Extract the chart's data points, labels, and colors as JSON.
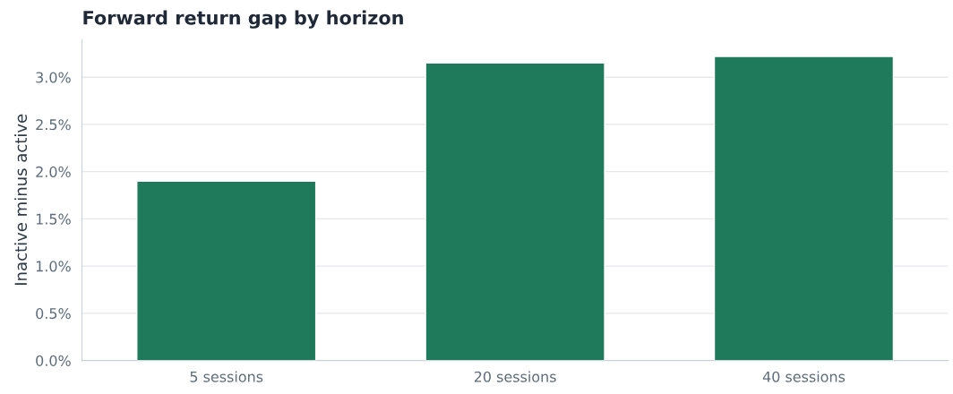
{
  "chart_data": {
    "type": "bar",
    "title": "Forward return gap by horizon",
    "ylabel": "Inactive minus active",
    "categories": [
      "5 sessions",
      "20 sessions",
      "40 sessions"
    ],
    "values": [
      1.9,
      3.15,
      3.22
    ],
    "color": "#1f7a5c",
    "ylim": [
      0,
      3.4
    ],
    "yticks": [
      {
        "value": 0,
        "label": "0.0%"
      },
      {
        "value": 0.5,
        "label": "0.5%"
      },
      {
        "value": 1,
        "label": "1.0%"
      },
      {
        "value": 1.5,
        "label": "1.5%"
      },
      {
        "value": 2,
        "label": "2.0%"
      },
      {
        "value": 2.5,
        "label": "2.5%"
      },
      {
        "value": 3,
        "label": "3.0%"
      }
    ],
    "grid": "y"
  }
}
